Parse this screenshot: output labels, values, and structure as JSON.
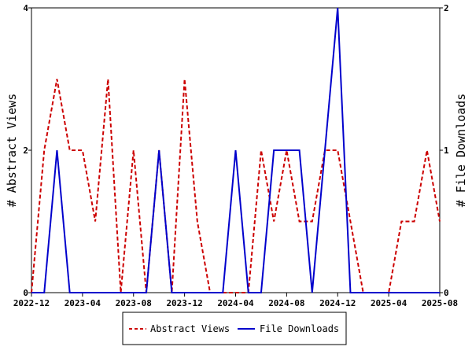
{
  "chart_data": {
    "type": "line",
    "title": "",
    "x": [
      "2022-12",
      "2023-01",
      "2023-02",
      "2023-03",
      "2023-04",
      "2023-05",
      "2023-06",
      "2023-07",
      "2023-08",
      "2023-09",
      "2023-10",
      "2023-11",
      "2023-12",
      "2024-01",
      "2024-02",
      "2024-03",
      "2024-04",
      "2024-05",
      "2024-06",
      "2024-07",
      "2024-08",
      "2024-09",
      "2024-10",
      "2024-11",
      "2024-12",
      "2025-01",
      "2025-02",
      "2025-03",
      "2025-04",
      "2025-05",
      "2025-06",
      "2025-07",
      "2025-08"
    ],
    "x_tick_labels": [
      "2022-12",
      "2023-04",
      "2023-08",
      "2023-12",
      "2024-04",
      "2024-08",
      "2024-12",
      "2025-04",
      "2025-08"
    ],
    "y_left": {
      "label": "# Abstract Views",
      "ylim": [
        0,
        4
      ],
      "ticks": [
        "0",
        "2",
        "4"
      ]
    },
    "y_right": {
      "label": "# File Downloads",
      "ylim": [
        0,
        2
      ],
      "ticks": [
        "0",
        "1",
        "2"
      ]
    },
    "series": [
      {
        "name": "Abstract Views",
        "axis": "left",
        "color": "#cc0000",
        "style": "dashed",
        "values": [
          0,
          2,
          3,
          2,
          2,
          1,
          3,
          0,
          2,
          0,
          2,
          0,
          3,
          1,
          0,
          0,
          0,
          0,
          2,
          1,
          2,
          1,
          1,
          2,
          2,
          1,
          0,
          0,
          0,
          1,
          1,
          2,
          1
        ]
      },
      {
        "name": "File Downloads",
        "axis": "right",
        "color": "#0000cc",
        "style": "solid",
        "values": [
          0,
          0,
          1,
          0,
          0,
          0,
          0,
          0,
          0,
          0,
          1,
          0,
          0,
          0,
          0,
          0,
          1,
          0,
          0,
          1,
          1,
          1,
          0,
          1,
          2,
          0,
          0,
          0,
          0,
          0,
          0,
          0,
          0
        ]
      }
    ],
    "grid": false,
    "legend": "bottom"
  }
}
